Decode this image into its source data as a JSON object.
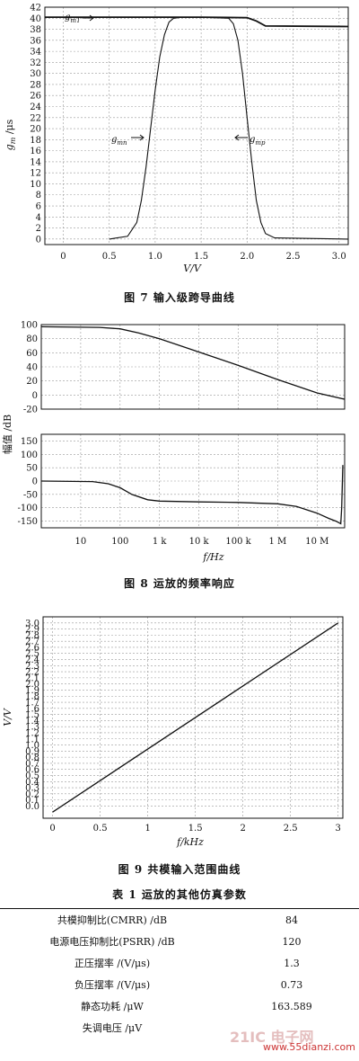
{
  "figure7": {
    "caption": "图 7  输入级跨导曲线",
    "gm_label_main": "g",
    "gm_label_sub": "m",
    "gm_label_suffix": " /μs",
    "xlabel": "V/V",
    "annotations": [
      {
        "main": "g",
        "sub": "mT"
      },
      {
        "main": "g",
        "sub": "mn"
      },
      {
        "main": "g",
        "sub": "mp"
      }
    ]
  },
  "figure8": {
    "caption": "图 8  运放的频率响应",
    "ylabel": "幅值 /dB",
    "xlabel": "f/Hz"
  },
  "figure9": {
    "caption": "图 9  共模输入范围曲线",
    "ylabel": "V/V",
    "xlabel": "f/kHz"
  },
  "table1": {
    "title": "表 1  运放的其他仿真参数",
    "rows": [
      {
        "name": "共模抑制比(CMRR) /dB",
        "value": "84"
      },
      {
        "name": "电源电压抑制比(PSRR) /dB",
        "value": "120"
      },
      {
        "name": "正压摆率 /(V/μs)",
        "value": "1.3"
      },
      {
        "name": "负压摆率 /(V/μs)",
        "value": "0.73"
      },
      {
        "name": "静态功耗 /μW",
        "value": "163.589"
      },
      {
        "name": "失调电压 /μV",
        "value": ""
      }
    ]
  },
  "watermark": {
    "logo_text": "21IC 电子网",
    "url": "www.55dianzi.com"
  },
  "chart_data": [
    {
      "type": "line",
      "id": "fig7",
      "xlim": [
        -0.2,
        3.1
      ],
      "ylim": [
        -1,
        42
      ],
      "xticks": [
        0,
        0.5,
        1.0,
        1.5,
        2.0,
        2.5,
        3.0
      ],
      "xtick_labels": [
        "0",
        "0.5",
        "1.0",
        "1.5",
        "2.0",
        "2.5",
        "3.0"
      ],
      "yticks": [
        0,
        2,
        4,
        6,
        8,
        10,
        12,
        14,
        16,
        18,
        20,
        22,
        24,
        26,
        28,
        30,
        32,
        34,
        36,
        38,
        40,
        42
      ],
      "grid": true,
      "series": [
        {
          "name": "gmT",
          "x": [
            -0.2,
            1.5,
            2.0,
            2.1,
            2.2,
            3.1
          ],
          "y": [
            40.2,
            40.2,
            40.1,
            39.5,
            38.6,
            38.5
          ]
        },
        {
          "name": "gmn",
          "x": [
            0.5,
            0.7,
            0.8,
            0.85,
            0.9,
            0.95,
            1.0,
            1.05,
            1.1,
            1.15,
            1.2,
            1.3,
            1.8
          ],
          "y": [
            0,
            0.5,
            3,
            7,
            13,
            20,
            27,
            33,
            37,
            39.3,
            40,
            40.2,
            40.2
          ]
        },
        {
          "name": "gmp",
          "x": [
            1.5,
            1.8,
            1.85,
            1.9,
            1.95,
            2.0,
            2.05,
            2.1,
            2.15,
            2.2,
            2.3,
            3.1
          ],
          "y": [
            40.2,
            40,
            39,
            36,
            30,
            22,
            14,
            7,
            3,
            1,
            0.2,
            0
          ]
        }
      ]
    },
    {
      "type": "line",
      "id": "fig8-magnitude",
      "x_scale": "log",
      "xlim": [
        1,
        50000000
      ],
      "ylim": [
        -20,
        100
      ],
      "yticks": [
        -20,
        0,
        20,
        40,
        60,
        80,
        100
      ],
      "grid": true,
      "series": [
        {
          "name": "magnitude",
          "x": [
            1,
            30,
            100,
            300,
            1000,
            10000,
            100000,
            1000000,
            10000000,
            50000000
          ],
          "y": [
            97,
            96,
            94,
            88,
            80,
            61,
            42,
            22,
            3,
            -6
          ]
        }
      ]
    },
    {
      "type": "line",
      "id": "fig8-phase",
      "x_scale": "log",
      "xlim": [
        1,
        50000000
      ],
      "ylim": [
        -175,
        175
      ],
      "yticks": [
        -150,
        -100,
        -50,
        0,
        50,
        100,
        150
      ],
      "xticks": [
        10,
        100,
        1000,
        10000,
        100000,
        1000000,
        10000000
      ],
      "xtick_labels": [
        "10",
        "100",
        "1 k",
        "10 k",
        "100 k",
        "1 M",
        "10 M"
      ],
      "grid": true,
      "series": [
        {
          "name": "phase",
          "x": [
            1,
            20,
            50,
            100,
            200,
            500,
            1000,
            10000,
            100000,
            1000000,
            3000000,
            10000000,
            20000000,
            30000000,
            40000000,
            42000000,
            45000000
          ],
          "y": [
            0,
            -2,
            -10,
            -25,
            -50,
            -70,
            -75,
            -78,
            -80,
            -85,
            -95,
            -120,
            -140,
            -150,
            -160,
            -100,
            60
          ]
        }
      ]
    },
    {
      "type": "line",
      "id": "fig9",
      "xlim": [
        -0.1,
        3.05
      ],
      "ylim": [
        -0.2,
        3.1
      ],
      "xticks": [
        0,
        0.5,
        1,
        1.5,
        2,
        2.5,
        3
      ],
      "xtick_labels": [
        "0",
        "0.5",
        "1",
        "1.5",
        "2",
        "2.5",
        "3"
      ],
      "yticks": [
        0,
        0.1,
        0.2,
        0.3,
        0.4,
        0.5,
        0.6,
        0.7,
        0.8,
        0.9,
        1.0,
        1.1,
        1.2,
        1.3,
        1.4,
        1.5,
        1.6,
        1.7,
        1.8,
        1.9,
        2.0,
        2.1,
        2.2,
        2.3,
        2.4,
        2.5,
        2.6,
        2.7,
        2.8,
        2.9,
        3.0
      ],
      "grid": true,
      "series": [
        {
          "name": "vout",
          "x": [
            0,
            3.0
          ],
          "y": [
            -0.1,
            3.0
          ]
        }
      ]
    }
  ]
}
